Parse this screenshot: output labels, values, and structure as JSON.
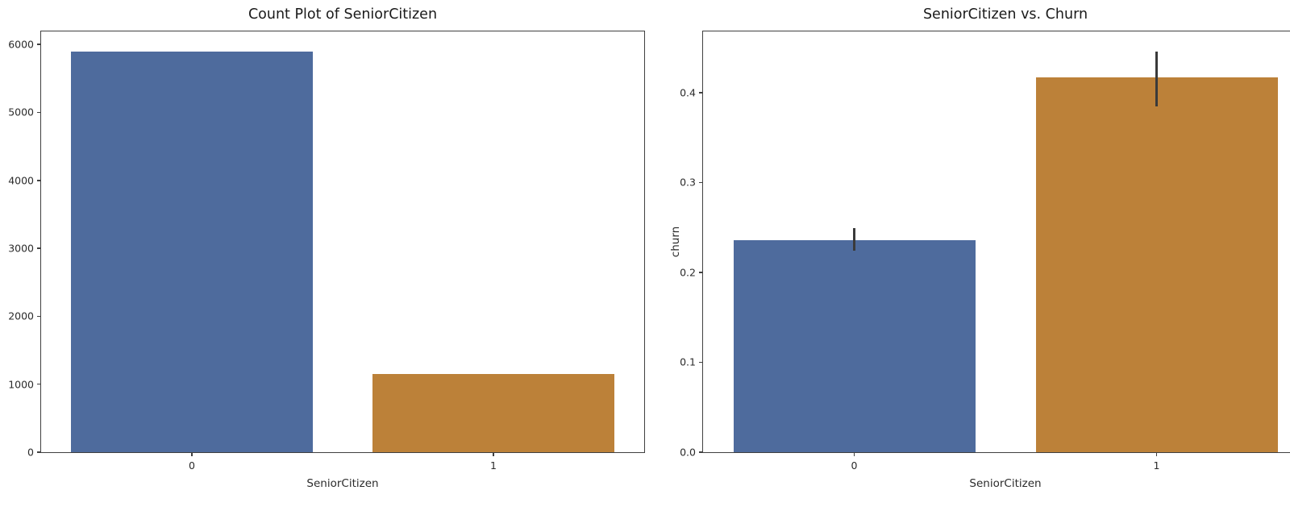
{
  "figure": {
    "background": "#ffffff",
    "spine_color": "#404040",
    "text_color": "#2b2b2b",
    "error_bar_color": "#3a3a3a"
  },
  "chart_data": [
    {
      "type": "bar",
      "title": "Count Plot of SeniorCitizen",
      "xlabel": "SeniorCitizen",
      "ylabel": "",
      "categories": [
        "0",
        "1"
      ],
      "values": [
        5900,
        1150
      ],
      "colors": [
        "#4e6b9d",
        "#bc8139"
      ],
      "ylim": [
        0,
        6192
      ],
      "yticks": [
        0,
        1000,
        2000,
        3000,
        4000,
        5000,
        6000
      ],
      "ytick_labels": [
        "0",
        "1000",
        "2000",
        "3000",
        "4000",
        "5000",
        "6000"
      ],
      "grid": false,
      "legend": "none"
    },
    {
      "type": "bar",
      "title": "SeniorCitizen vs. Churn",
      "xlabel": "SeniorCitizen",
      "ylabel": "churn",
      "categories": [
        "0",
        "1"
      ],
      "values": [
        0.236,
        0.417
      ],
      "error_bars": [
        [
          0.224,
          0.249
        ],
        [
          0.385,
          0.446
        ]
      ],
      "colors": [
        "#4e6b9d",
        "#bc8139"
      ],
      "ylim": [
        0,
        0.468
      ],
      "yticks": [
        0.0,
        0.1,
        0.2,
        0.3,
        0.4
      ],
      "ytick_labels": [
        "0.0",
        "0.1",
        "0.2",
        "0.3",
        "0.4"
      ],
      "grid": false,
      "legend": "none"
    }
  ]
}
